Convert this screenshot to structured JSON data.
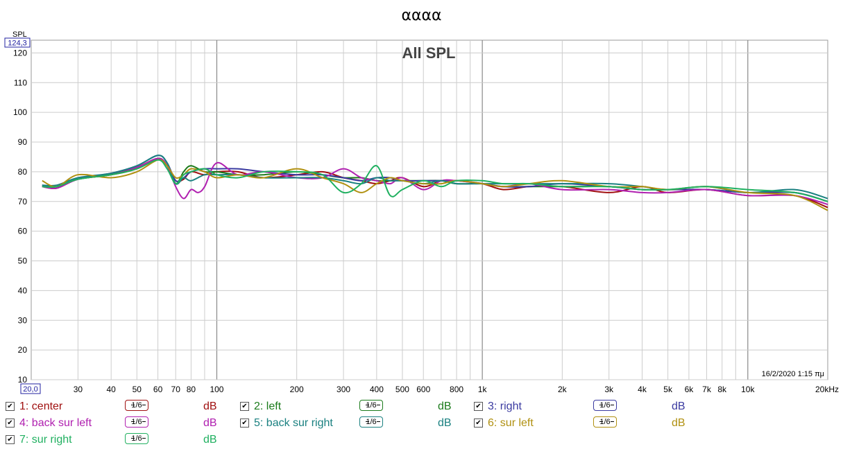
{
  "window_title": "αααα",
  "colors": {
    "center": "#a01010",
    "left": "#1a7a1a",
    "right": "#3a3aa0",
    "back_sur_left": "#b020b0",
    "back_sur_right": "#1a8080",
    "sur_left": "#b09010",
    "sur_right": "#20b060"
  },
  "chart_data": {
    "type": "line",
    "title": "All SPL",
    "ylabel": "SPL",
    "y_top_label": "124,3",
    "x_start_label": "20,0",
    "timestamp": "16/2/2020 1:15 πμ",
    "xscale": "log",
    "xlim": [
      20,
      20000
    ],
    "ylim": [
      10,
      124.3
    ],
    "grid": true,
    "y_ticks": [
      10,
      20,
      30,
      40,
      50,
      60,
      70,
      80,
      90,
      100,
      110,
      120
    ],
    "x_ticks": [
      {
        "value": 30,
        "label": "30"
      },
      {
        "value": 40,
        "label": "40"
      },
      {
        "value": 50,
        "label": "50"
      },
      {
        "value": 60,
        "label": "60"
      },
      {
        "value": 70,
        "label": "70"
      },
      {
        "value": 80,
        "label": "80"
      },
      {
        "value": 100,
        "label": "100"
      },
      {
        "value": 200,
        "label": "200"
      },
      {
        "value": 300,
        "label": "300"
      },
      {
        "value": 400,
        "label": "400"
      },
      {
        "value": 500,
        "label": "500"
      },
      {
        "value": 600,
        "label": "600"
      },
      {
        "value": 800,
        "label": "800"
      },
      {
        "value": 1000,
        "label": "1k"
      },
      {
        "value": 2000,
        "label": "2k"
      },
      {
        "value": 3000,
        "label": "3k"
      },
      {
        "value": 4000,
        "label": "4k"
      },
      {
        "value": 5000,
        "label": "5k"
      },
      {
        "value": 6000,
        "label": "6k"
      },
      {
        "value": 7000,
        "label": "7k"
      },
      {
        "value": 8000,
        "label": "8k"
      },
      {
        "value": 10000,
        "label": "10k"
      },
      {
        "value": 20000,
        "label": "20kHz"
      }
    ],
    "series": [
      {
        "name": "1: center",
        "color": "#a01010",
        "x": [
          22,
          25,
          30,
          40,
          50,
          60,
          65,
          70,
          75,
          80,
          90,
          100,
          120,
          150,
          200,
          250,
          300,
          350,
          400,
          450,
          500,
          600,
          700,
          800,
          1000,
          1200,
          1500,
          2000,
          3000,
          4000,
          5000,
          7000,
          10000,
          15000,
          20000
        ],
        "y": [
          75,
          74.5,
          77.5,
          79,
          81.5,
          84.5,
          82,
          77,
          77.5,
          80,
          79,
          80,
          80,
          78,
          79,
          80,
          78,
          77,
          76,
          77,
          78,
          75,
          77,
          77,
          76,
          74,
          75,
          75,
          73,
          75,
          73,
          74,
          72,
          72,
          68
        ]
      },
      {
        "name": "2: left",
        "color": "#1a7a1a",
        "x": [
          22,
          25,
          30,
          40,
          50,
          60,
          65,
          70,
          75,
          80,
          90,
          100,
          120,
          150,
          200,
          250,
          300,
          350,
          400,
          450,
          500,
          600,
          700,
          800,
          1000,
          1200,
          1500,
          2000,
          3000,
          4000,
          5000,
          7000,
          10000,
          15000,
          20000
        ],
        "y": [
          75,
          75,
          77.5,
          79,
          81,
          84.5,
          82,
          76,
          80,
          82,
          80,
          80,
          79,
          79,
          80,
          79,
          78,
          78,
          77,
          77,
          77,
          77,
          77,
          76,
          76,
          75,
          75,
          75,
          75,
          74,
          74,
          74,
          73,
          73,
          70
        ]
      },
      {
        "name": "3: right",
        "color": "#3a3aa0",
        "x": [
          22,
          25,
          30,
          40,
          50,
          60,
          65,
          70,
          75,
          80,
          90,
          100,
          120,
          150,
          200,
          250,
          300,
          350,
          400,
          450,
          500,
          600,
          700,
          800,
          1000,
          1200,
          1500,
          2000,
          3000,
          4000,
          5000,
          7000,
          10000,
          15000,
          20000
        ],
        "y": [
          75.5,
          75,
          77.5,
          79.5,
          82,
          85.5,
          83,
          77,
          78,
          80,
          81,
          81,
          81,
          80,
          79,
          79,
          78,
          77,
          78,
          78,
          77,
          77,
          77,
          77,
          76,
          75,
          75,
          76,
          75,
          74,
          74,
          74,
          73,
          73,
          70
        ]
      },
      {
        "name": "4: back sur left",
        "color": "#b020b0",
        "x": [
          22,
          25,
          30,
          40,
          50,
          60,
          65,
          70,
          75,
          80,
          85,
          90,
          100,
          120,
          150,
          200,
          250,
          300,
          350,
          400,
          450,
          500,
          600,
          700,
          800,
          1000,
          1200,
          1500,
          2000,
          3000,
          4000,
          5000,
          7000,
          10000,
          15000,
          20000
        ],
        "y": [
          75,
          74.5,
          77.5,
          79.5,
          81.5,
          84.5,
          82,
          75,
          71,
          74,
          73,
          75,
          83,
          79,
          80,
          78,
          78,
          81,
          78,
          77,
          76,
          78,
          74,
          77,
          77,
          76,
          75,
          76,
          74,
          74,
          73,
          73,
          74,
          72,
          72,
          69
        ]
      },
      {
        "name": "5: back sur right",
        "color": "#1a8080",
        "x": [
          22,
          25,
          30,
          40,
          50,
          60,
          65,
          70,
          75,
          80,
          90,
          100,
          120,
          150,
          200,
          250,
          300,
          350,
          400,
          450,
          500,
          600,
          700,
          800,
          1000,
          1200,
          1500,
          2000,
          3000,
          4000,
          5000,
          7000,
          10000,
          15000,
          20000
        ],
        "y": [
          75.5,
          75.5,
          78,
          79.5,
          82,
          85.5,
          83,
          76,
          78,
          77,
          79,
          79,
          79,
          78,
          78,
          78,
          77,
          76,
          78,
          77,
          77,
          76,
          77,
          76,
          76,
          76,
          76,
          76,
          76,
          75,
          74,
          75,
          73,
          74,
          71
        ]
      },
      {
        "name": "6: sur left",
        "color": "#b09010",
        "x": [
          22,
          25,
          30,
          40,
          50,
          60,
          65,
          70,
          75,
          80,
          90,
          100,
          120,
          150,
          200,
          250,
          300,
          350,
          400,
          450,
          500,
          600,
          700,
          800,
          1000,
          1200,
          1500,
          2000,
          3000,
          4000,
          5000,
          7000,
          10000,
          15000,
          20000
        ],
        "y": [
          77,
          75,
          79,
          78,
          80,
          84,
          82,
          78,
          79,
          81,
          80,
          78,
          79,
          78,
          81,
          78,
          76,
          73,
          76,
          78,
          77,
          76,
          76,
          77,
          76,
          75,
          76,
          77,
          75,
          75,
          74,
          75,
          73,
          72,
          67
        ]
      },
      {
        "name": "7: sur right",
        "color": "#20b060",
        "x": [
          22,
          25,
          30,
          40,
          50,
          60,
          65,
          70,
          75,
          80,
          90,
          100,
          120,
          150,
          200,
          250,
          300,
          350,
          400,
          450,
          500,
          600,
          700,
          800,
          1000,
          1200,
          1500,
          2000,
          3000,
          4000,
          5000,
          7000,
          10000,
          15000,
          20000
        ],
        "y": [
          75,
          75,
          77.5,
          79,
          81,
          84,
          81,
          76,
          79,
          80,
          81,
          79,
          78,
          80,
          80,
          79,
          73,
          76,
          82,
          72,
          74,
          77,
          75,
          77,
          77,
          76,
          76,
          75,
          75,
          74,
          74,
          75,
          74,
          73,
          70
        ]
      }
    ]
  },
  "legend": [
    {
      "label": "1: center",
      "smoothing": "1/6",
      "unit": "dB",
      "color": "#a01010"
    },
    {
      "label": "2: left",
      "smoothing": "1/6",
      "unit": "dB",
      "color": "#1a7a1a"
    },
    {
      "label": "3: right",
      "smoothing": "1/6",
      "unit": "dB",
      "color": "#3a3aa0"
    },
    {
      "label": "4: back sur left",
      "smoothing": "1/6",
      "unit": "dB",
      "color": "#b020b0"
    },
    {
      "label": "5: back sur right",
      "smoothing": "1/6",
      "unit": "dB",
      "color": "#1a8080"
    },
    {
      "label": "6: sur left",
      "smoothing": "1/6",
      "unit": "dB",
      "color": "#b09010"
    },
    {
      "label": "7: sur right",
      "smoothing": "1/6",
      "unit": "dB",
      "color": "#20b060"
    }
  ]
}
